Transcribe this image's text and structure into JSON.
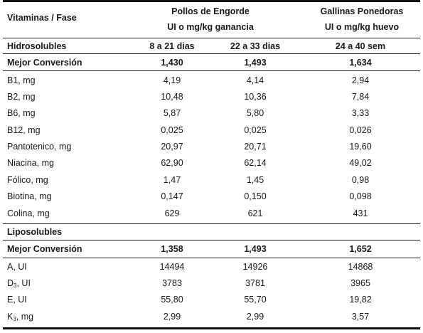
{
  "header": {
    "col0": "Vitaminas / Fase",
    "group1": "Pollos de Engorde",
    "group1_unit": "UI o mg/kg ganancia",
    "group2": "Gallinas Ponedoras",
    "group2_unit": "UI o mg/kg huevo"
  },
  "sections": [
    {
      "label": "Hidrosolubles",
      "phases": [
        "8 a 21 dias",
        "22 a 33 dias",
        "24 a 40 sem"
      ],
      "conversion": {
        "label": "Mejor Conversión",
        "values": [
          "1,430",
          "1,493",
          "1,634"
        ]
      },
      "rows": [
        {
          "label": "B1, mg",
          "values": [
            "4,19",
            "4,14",
            "2,94"
          ]
        },
        {
          "label": "B2, mg",
          "values": [
            "10,48",
            "10,36",
            "7,84"
          ]
        },
        {
          "label": "B6, mg",
          "values": [
            "5,87",
            "5,80",
            "3,33"
          ]
        },
        {
          "label": "B12, mg",
          "values": [
            "0,025",
            "0,025",
            "0,026"
          ]
        },
        {
          "label": "Pantotenico, mg",
          "values": [
            "20,97",
            "20,71",
            "19,60"
          ]
        },
        {
          "label": "Niacina, mg",
          "values": [
            "62,90",
            "62,14",
            "49,02"
          ]
        },
        {
          "label": "Fólico, mg",
          "values": [
            "1,47",
            "1,45",
            "0,98"
          ]
        },
        {
          "label": "Biotina, mg",
          "values": [
            "0,147",
            "0,150",
            "0,098"
          ]
        },
        {
          "label": "Colina, mg",
          "values": [
            "629",
            "621",
            "431"
          ]
        }
      ]
    },
    {
      "label": "Liposolubles",
      "conversion": {
        "label": "Mejor Conversión",
        "values": [
          "1,358",
          "1,493",
          "1,652"
        ]
      },
      "rows": [
        {
          "label": "A, UI",
          "values": [
            "14494",
            "14926",
            "14868"
          ]
        },
        {
          "letter": "D",
          "sub": "3",
          "unit": ", UI",
          "values": [
            "3783",
            "3781",
            "3965"
          ]
        },
        {
          "label": "E, UI",
          "values": [
            "55,80",
            "55,70",
            "19,82"
          ]
        },
        {
          "letter": "K",
          "sub": "3",
          "unit": ", mg",
          "values": [
            "2,99",
            "2,99",
            "3,57"
          ]
        }
      ]
    }
  ]
}
